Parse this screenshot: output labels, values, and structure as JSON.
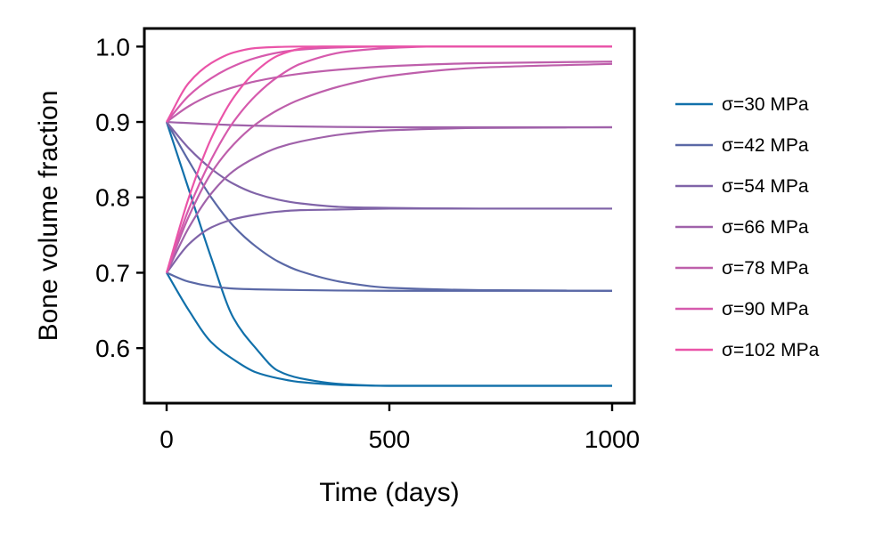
{
  "chart_data": {
    "type": "line",
    "title": "",
    "xlabel": "Time (days)",
    "ylabel": "Bone volume fraction",
    "xlim": [
      -50,
      1050
    ],
    "ylim": [
      0.527,
      1.024
    ],
    "x_ticks": [
      0,
      500,
      1000
    ],
    "x_tick_labels": [
      "0",
      "500",
      "1000"
    ],
    "y_ticks": [
      0.6,
      0.7,
      0.8,
      0.9,
      1.0
    ],
    "y_tick_labels": [
      "0.6",
      "0.7",
      "0.8",
      "0.9",
      "1.0"
    ],
    "grid": false,
    "legend_position": "right outside",
    "series": [
      {
        "name": "σ=30 MPa",
        "color": "#1170aa",
        "equilibrium": 0.55,
        "curves": [
          {
            "start": 0.9,
            "points": [
              [
                0,
                0.9
              ],
              [
                50,
                0.81
              ],
              [
                100,
                0.72
              ],
              [
                150,
                0.64
              ],
              [
                200,
                0.6
              ],
              [
                250,
                0.57
              ],
              [
                300,
                0.56
              ],
              [
                400,
                0.552
              ],
              [
                500,
                0.55
              ],
              [
                700,
                0.55
              ],
              [
                1000,
                0.55
              ]
            ]
          },
          {
            "start": 0.7,
            "points": [
              [
                0,
                0.7
              ],
              [
                50,
                0.65
              ],
              [
                100,
                0.608
              ],
              [
                150,
                0.585
              ],
              [
                200,
                0.568
              ],
              [
                250,
                0.56
              ],
              [
                300,
                0.555
              ],
              [
                400,
                0.551
              ],
              [
                500,
                0.55
              ],
              [
                700,
                0.55
              ],
              [
                1000,
                0.55
              ]
            ]
          }
        ]
      },
      {
        "name": "σ=42 MPa",
        "color": "#5a68a6",
        "equilibrium": 0.676,
        "curves": [
          {
            "start": 0.9,
            "points": [
              [
                0,
                0.9
              ],
              [
                50,
                0.848
              ],
              [
                100,
                0.8
              ],
              [
                150,
                0.762
              ],
              [
                200,
                0.735
              ],
              [
                250,
                0.715
              ],
              [
                300,
                0.702
              ],
              [
                400,
                0.687
              ],
              [
                500,
                0.68
              ],
              [
                700,
                0.677
              ],
              [
                1000,
                0.676
              ]
            ]
          },
          {
            "start": 0.7,
            "points": [
              [
                0,
                0.7
              ],
              [
                50,
                0.688
              ],
              [
                100,
                0.682
              ],
              [
                150,
                0.679
              ],
              [
                200,
                0.678
              ],
              [
                300,
                0.677
              ],
              [
                500,
                0.676
              ],
              [
                1000,
                0.676
              ]
            ]
          }
        ]
      },
      {
        "name": "σ=54 MPa",
        "color": "#8064a8",
        "equilibrium": 0.785,
        "curves": [
          {
            "start": 0.9,
            "points": [
              [
                0,
                0.9
              ],
              [
                50,
                0.865
              ],
              [
                100,
                0.838
              ],
              [
                150,
                0.818
              ],
              [
                200,
                0.805
              ],
              [
                250,
                0.797
              ],
              [
                300,
                0.792
              ],
              [
                400,
                0.787
              ],
              [
                500,
                0.786
              ],
              [
                700,
                0.785
              ],
              [
                1000,
                0.785
              ]
            ]
          },
          {
            "start": 0.7,
            "points": [
              [
                0,
                0.7
              ],
              [
                50,
                0.738
              ],
              [
                100,
                0.76
              ],
              [
                150,
                0.771
              ],
              [
                200,
                0.777
              ],
              [
                250,
                0.781
              ],
              [
                300,
                0.783
              ],
              [
                400,
                0.784
              ],
              [
                500,
                0.785
              ],
              [
                1000,
                0.785
              ]
            ]
          }
        ]
      },
      {
        "name": "σ=66 MPa",
        "color": "#a062aa",
        "equilibrium": 0.893,
        "curves": [
          {
            "start": 0.9,
            "points": [
              [
                0,
                0.9
              ],
              [
                100,
                0.897
              ],
              [
                200,
                0.895
              ],
              [
                300,
                0.894
              ],
              [
                500,
                0.893
              ],
              [
                1000,
                0.893
              ]
            ]
          },
          {
            "start": 0.7,
            "points": [
              [
                0,
                0.7
              ],
              [
                50,
                0.76
              ],
              [
                100,
                0.805
              ],
              [
                150,
                0.835
              ],
              [
                200,
                0.853
              ],
              [
                250,
                0.866
              ],
              [
                300,
                0.874
              ],
              [
                400,
                0.884
              ],
              [
                500,
                0.889
              ],
              [
                700,
                0.892
              ],
              [
                1000,
                0.893
              ]
            ]
          }
        ]
      },
      {
        "name": "σ=78 MPa",
        "color": "#be5fab",
        "equilibrium": 0.98,
        "curves": [
          {
            "start": 0.9,
            "points": [
              [
                0,
                0.9
              ],
              [
                50,
                0.921
              ],
              [
                100,
                0.936
              ],
              [
                150,
                0.946
              ],
              [
                200,
                0.954
              ],
              [
                300,
                0.964
              ],
              [
                400,
                0.97
              ],
              [
                500,
                0.974
              ],
              [
                700,
                0.978
              ],
              [
                1000,
                0.98
              ]
            ]
          },
          {
            "start": 0.7,
            "points": [
              [
                0,
                0.7
              ],
              [
                50,
                0.775
              ],
              [
                100,
                0.832
              ],
              [
                150,
                0.87
              ],
              [
                200,
                0.897
              ],
              [
                250,
                0.916
              ],
              [
                300,
                0.93
              ],
              [
                400,
                0.949
              ],
              [
                500,
                0.961
              ],
              [
                700,
                0.972
              ],
              [
                1000,
                0.977
              ]
            ]
          }
        ]
      },
      {
        "name": "σ=90 MPa",
        "color": "#d65aad",
        "equilibrium": 1.0,
        "curves": [
          {
            "start": 0.9,
            "points": [
              [
                0,
                0.9
              ],
              [
                50,
                0.935
              ],
              [
                100,
                0.958
              ],
              [
                150,
                0.974
              ],
              [
                200,
                0.985
              ],
              [
                250,
                0.992
              ],
              [
                300,
                0.996
              ],
              [
                400,
                0.999
              ],
              [
                500,
                1.0
              ],
              [
                1000,
                1.0
              ]
            ]
          },
          {
            "start": 0.7,
            "points": [
              [
                0,
                0.7
              ],
              [
                50,
                0.785
              ],
              [
                100,
                0.85
              ],
              [
                150,
                0.9
              ],
              [
                200,
                0.935
              ],
              [
                250,
                0.96
              ],
              [
                300,
                0.977
              ],
              [
                400,
                0.993
              ],
              [
                500,
                0.998
              ],
              [
                600,
                1.0
              ],
              [
                1000,
                1.0
              ]
            ]
          }
        ]
      },
      {
        "name": "σ=102 MPa",
        "color": "#ea54a8",
        "equilibrium": 1.0,
        "curves": [
          {
            "start": 0.9,
            "points": [
              [
                0,
                0.9
              ],
              [
                50,
                0.952
              ],
              [
                100,
                0.978
              ],
              [
                150,
                0.992
              ],
              [
                200,
                0.998
              ],
              [
                250,
                0.9995
              ],
              [
                300,
                1.0
              ],
              [
                1000,
                1.0
              ]
            ]
          },
          {
            "start": 0.7,
            "points": [
              [
                0,
                0.7
              ],
              [
                50,
                0.8
              ],
              [
                100,
                0.878
              ],
              [
                150,
                0.932
              ],
              [
                200,
                0.967
              ],
              [
                250,
                0.988
              ],
              [
                300,
                0.997
              ],
              [
                350,
                1.0
              ],
              [
                1000,
                1.0
              ]
            ]
          }
        ]
      }
    ]
  }
}
